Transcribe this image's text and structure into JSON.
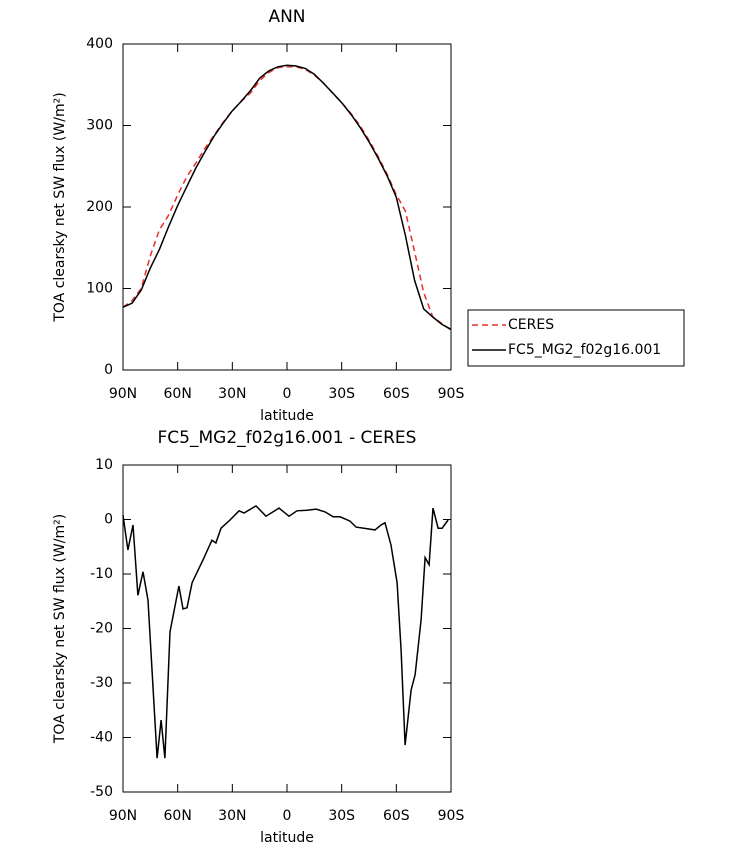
{
  "chart_data": [
    {
      "type": "line",
      "title": "ANN",
      "xlabel": "latitude",
      "ylabel": "TOA clearsky net SW flux (W/m²)",
      "x": [
        90,
        85,
        80,
        75,
        70,
        65,
        60,
        55,
        50,
        45,
        40,
        35,
        30,
        25,
        20,
        15,
        10,
        5,
        0,
        -5,
        -10,
        -15,
        -20,
        -25,
        -30,
        -35,
        -40,
        -45,
        -50,
        -55,
        -60,
        -65,
        -70,
        -75,
        -80,
        -85,
        -90
      ],
      "series": [
        {
          "name": "CERES",
          "color": "#e8302a",
          "line_style": "dashed",
          "values": [
            77,
            85,
            100,
            140,
            172,
            190,
            215,
            237,
            254,
            272,
            288,
            304,
            318,
            330,
            340,
            355,
            365,
            371,
            372,
            372,
            369,
            362,
            352,
            340,
            328,
            315,
            300,
            282,
            262,
            240,
            215,
            195,
            145,
            95,
            65,
            57,
            49
          ]
        },
        {
          "name": "FC5_MG2_f02g16.001",
          "color": "#000000",
          "line_style": "solid",
          "values": [
            77,
            82,
            98,
            125,
            148,
            176,
            202,
            225,
            248,
            268,
            287,
            303,
            318,
            330,
            343,
            358,
            367,
            372,
            374,
            373,
            370,
            363,
            352,
            340,
            328,
            314,
            298,
            280,
            260,
            238,
            212,
            165,
            110,
            75,
            65,
            56,
            50
          ]
        }
      ],
      "xlim": [
        90,
        -90
      ],
      "xticks": [
        {
          "value": 90,
          "label": "90N"
        },
        {
          "value": 60,
          "label": "60N"
        },
        {
          "value": 30,
          "label": "30N"
        },
        0,
        {
          "value": -30,
          "label": "30S"
        },
        {
          "value": -60,
          "label": "60S"
        },
        {
          "value": -90,
          "label": "90S"
        }
      ],
      "ylim": [
        0,
        400
      ],
      "yticks": [
        0,
        100,
        200,
        300,
        400
      ],
      "legend": "right"
    },
    {
      "type": "line",
      "title": "FC5_MG2_f02g16.001 - CERES",
      "xlabel": "latitude",
      "ylabel": "TOA clearsky net SW flux (W/m²)",
      "x": [
        90,
        87.3,
        84.5,
        81.8,
        79,
        76.3,
        71.3,
        69.1,
        67,
        64.2,
        59.3,
        57.1,
        54.9,
        52.1,
        45.5,
        41.2,
        39,
        36.2,
        31.3,
        26.3,
        23.6,
        17,
        11.5,
        4.4,
        -1.1,
        -5.5,
        -11,
        -16,
        -20.9,
        -25.3,
        -29.1,
        -34.6,
        -37.9,
        -48.3,
        -51.6,
        -53.8,
        -57.1,
        -60.4,
        -62.6,
        -64.8,
        -68.1,
        -70.3,
        -73.6,
        -75.8,
        -78,
        -80.1,
        -82.9,
        -85.1,
        -88.4
      ],
      "values": [
        0.8,
        -5.6,
        -1,
        -13.9,
        -9.6,
        -14.8,
        -43.8,
        -36.8,
        -43.8,
        -20.6,
        -12.2,
        -16.4,
        -16.2,
        -11.6,
        -7,
        -3.8,
        -4.3,
        -1.6,
        -0.1,
        1.6,
        1.2,
        2.5,
        0.6,
        2.1,
        0.6,
        1.6,
        1.7,
        1.9,
        1.4,
        0.5,
        0.5,
        -0.3,
        -1.4,
        -1.9,
        -1,
        -0.6,
        -4.7,
        -11.6,
        -24,
        -41.4,
        -31.3,
        -28.5,
        -18.4,
        -7,
        -8.3,
        2.1,
        -1.6,
        -1.6,
        -0.1
      ],
      "color": "#000000",
      "xlim": [
        90,
        -90
      ],
      "xticks": [
        {
          "value": 90,
          "label": "90N"
        },
        {
          "value": 60,
          "label": "60N"
        },
        {
          "value": 30,
          "label": "30N"
        },
        0,
        {
          "value": -30,
          "label": "30S"
        },
        {
          "value": -60,
          "label": "60S"
        },
        {
          "value": -90,
          "label": "90S"
        }
      ],
      "ylim": [
        -50,
        10
      ],
      "yticks": [
        -50,
        -40,
        -30,
        -20,
        -10,
        0,
        10
      ]
    }
  ]
}
